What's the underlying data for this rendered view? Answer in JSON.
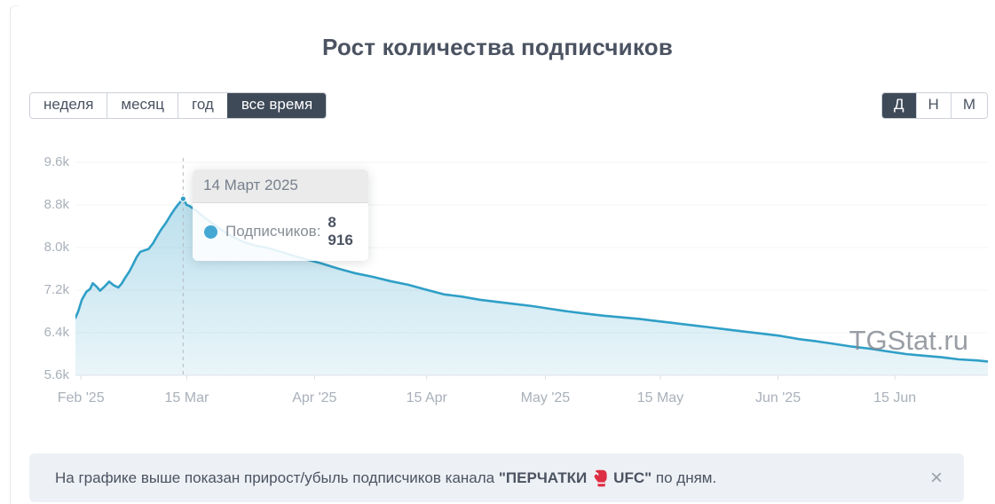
{
  "page": {
    "title": "Рост количества подписчиков"
  },
  "range_tabs": [
    {
      "label": "неделя",
      "active": false
    },
    {
      "label": "месяц",
      "active": false
    },
    {
      "label": "год",
      "active": false
    },
    {
      "label": "все время",
      "active": true
    }
  ],
  "granularity_tabs": [
    {
      "label": "Д",
      "active": true
    },
    {
      "label": "Н",
      "active": false
    },
    {
      "label": "М",
      "active": false
    }
  ],
  "chart_data": {
    "type": "area",
    "title": "Рост количества подписчиков",
    "series_name": "Подписчиков",
    "line_color": "#2f9fc7",
    "fill_top": "rgba(47,159,199,0.33)",
    "fill_bottom": "rgba(47,159,199,0.10)",
    "grid": "horizontal",
    "legend_position": "none",
    "ylim": [
      5600,
      9870
    ],
    "yticks": [
      {
        "label": "5.6k",
        "value": 5600
      },
      {
        "label": "6.4k",
        "value": 6400
      },
      {
        "label": "7.2k",
        "value": 7200
      },
      {
        "label": "8.0k",
        "value": 8000
      },
      {
        "label": "8.8k",
        "value": 8800
      },
      {
        "label": "9.6k",
        "value": 9600
      }
    ],
    "xticks": [
      {
        "label": "Feb '25",
        "pos": 0.006
      },
      {
        "label": "15 Mar",
        "pos": 0.122
      },
      {
        "label": "Apr '25",
        "pos": 0.262
      },
      {
        "label": "15 Apr",
        "pos": 0.385
      },
      {
        "label": "May '25",
        "pos": 0.515
      },
      {
        "label": "15 May",
        "pos": 0.641
      },
      {
        "label": "Jun '25",
        "pos": 0.77
      },
      {
        "label": "15 Jun",
        "pos": 0.898
      }
    ],
    "points": [
      [
        0.0,
        6680
      ],
      [
        0.003,
        6800
      ],
      [
        0.007,
        7020
      ],
      [
        0.012,
        7170
      ],
      [
        0.016,
        7220
      ],
      [
        0.019,
        7330
      ],
      [
        0.023,
        7270
      ],
      [
        0.027,
        7190
      ],
      [
        0.032,
        7270
      ],
      [
        0.037,
        7360
      ],
      [
        0.042,
        7290
      ],
      [
        0.047,
        7250
      ],
      [
        0.051,
        7330
      ],
      [
        0.054,
        7420
      ],
      [
        0.059,
        7550
      ],
      [
        0.063,
        7680
      ],
      [
        0.067,
        7820
      ],
      [
        0.071,
        7920
      ],
      [
        0.076,
        7950
      ],
      [
        0.08,
        7970
      ],
      [
        0.085,
        8080
      ],
      [
        0.089,
        8200
      ],
      [
        0.094,
        8340
      ],
      [
        0.099,
        8460
      ],
      [
        0.104,
        8600
      ],
      [
        0.109,
        8730
      ],
      [
        0.113,
        8820
      ],
      [
        0.118,
        8916
      ],
      [
        0.122,
        8800
      ],
      [
        0.125,
        8780
      ],
      [
        0.131,
        8710
      ],
      [
        0.141,
        8570
      ],
      [
        0.156,
        8380
      ],
      [
        0.17,
        8220
      ],
      [
        0.185,
        8100
      ],
      [
        0.199,
        8030
      ],
      [
        0.209,
        8000
      ],
      [
        0.229,
        7900
      ],
      [
        0.248,
        7800
      ],
      [
        0.268,
        7710
      ],
      [
        0.287,
        7610
      ],
      [
        0.306,
        7520
      ],
      [
        0.326,
        7450
      ],
      [
        0.345,
        7370
      ],
      [
        0.365,
        7300
      ],
      [
        0.384,
        7210
      ],
      [
        0.404,
        7120
      ],
      [
        0.423,
        7080
      ],
      [
        0.443,
        7020
      ],
      [
        0.462,
        6980
      ],
      [
        0.481,
        6940
      ],
      [
        0.501,
        6900
      ],
      [
        0.52,
        6850
      ],
      [
        0.54,
        6800
      ],
      [
        0.559,
        6760
      ],
      [
        0.579,
        6720
      ],
      [
        0.598,
        6690
      ],
      [
        0.618,
        6660
      ],
      [
        0.637,
        6620
      ],
      [
        0.657,
        6580
      ],
      [
        0.676,
        6540
      ],
      [
        0.696,
        6500
      ],
      [
        0.715,
        6460
      ],
      [
        0.734,
        6420
      ],
      [
        0.754,
        6380
      ],
      [
        0.773,
        6340
      ],
      [
        0.793,
        6280
      ],
      [
        0.812,
        6240
      ],
      [
        0.832,
        6190
      ],
      [
        0.851,
        6140
      ],
      [
        0.871,
        6100
      ],
      [
        0.89,
        6050
      ],
      [
        0.91,
        6000
      ],
      [
        0.929,
        5970
      ],
      [
        0.949,
        5940
      ],
      [
        0.968,
        5900
      ],
      [
        0.988,
        5880
      ],
      [
        1.0,
        5860
      ]
    ],
    "marker": {
      "pos": 0.118,
      "value": 8916,
      "date": "14 Март 2025"
    },
    "watermark": "TGStat.ru"
  },
  "tooltip": {
    "date": "14 Март 2025",
    "label": "Подписчиков:",
    "value": "8 916"
  },
  "notice": {
    "text_prefix": "На графике выше показан прирост/убыль подписчиков канала",
    "channel_part1": "\"ПЕРЧАТКИ",
    "channel_part2": "UFC\"",
    "glove_icon": "boxing-glove",
    "text_suffix": "по дням.",
    "close": "×"
  }
}
